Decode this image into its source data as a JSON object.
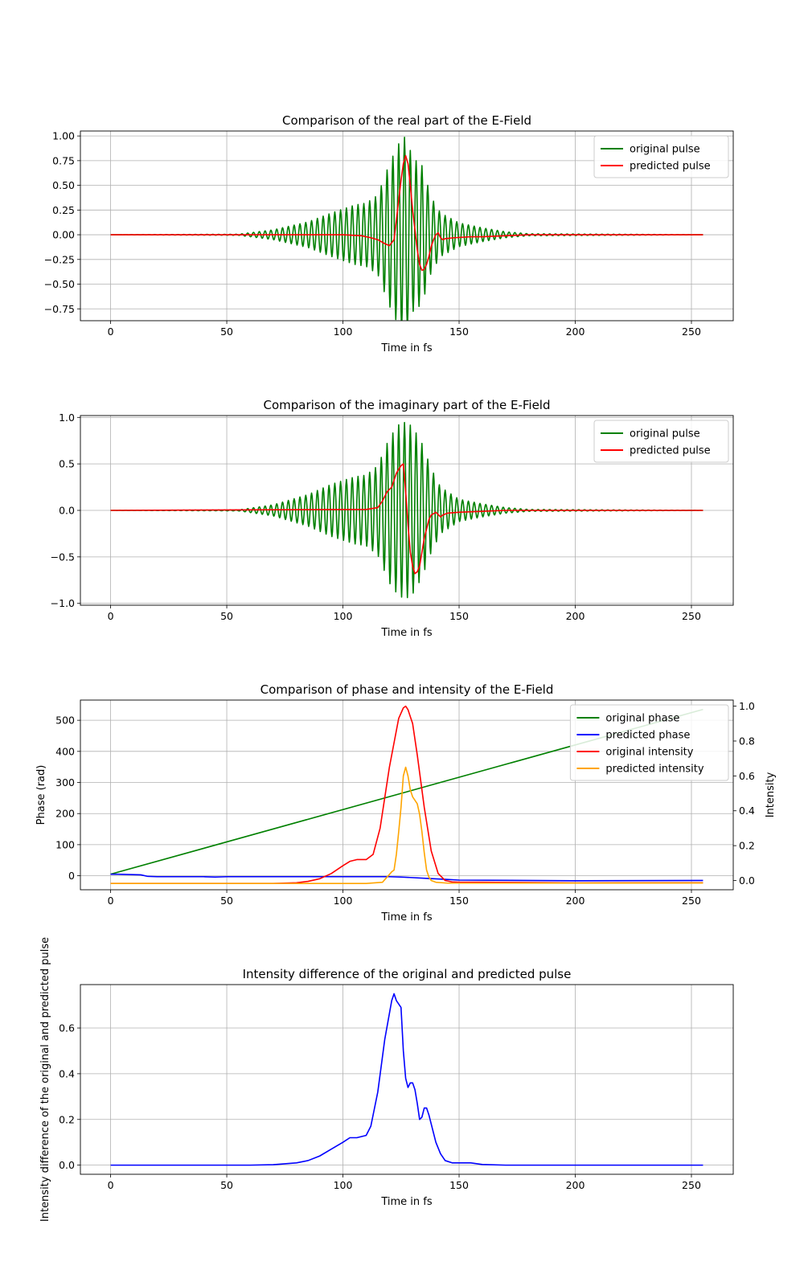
{
  "chart_data": [
    {
      "type": "line",
      "title": "Comparison of the real part of the E-Field",
      "xlabel": "Time in fs",
      "ylabel": "",
      "xlim": [
        -13,
        268
      ],
      "ylim": [
        -0.87,
        1.05
      ],
      "xticks": [
        0,
        50,
        100,
        150,
        200,
        250
      ],
      "yticks": [
        1.0,
        0.75,
        0.5,
        0.25,
        0.0,
        -0.25,
        -0.5,
        -0.75
      ],
      "ytick_labels": [
        "1.00",
        "0.75",
        "0.50",
        "0.25",
        "0.00",
        "−0.25",
        "−0.50",
        "−0.75"
      ],
      "grid": true,
      "legend": "top-right",
      "series": [
        {
          "name": "original pulse",
          "color": "#008000",
          "kind": "oscillation",
          "x_range": [
            0,
            255
          ],
          "carrier_period_fs": 2.5,
          "peak_time_fs": 126.5,
          "envelope": {
            "x": [
              0,
              55,
              70,
              85,
              95,
              105,
              110,
              115,
              120,
              124,
              127,
              130,
              134,
              138,
              142,
              150,
              160,
              170,
              180,
              255
            ],
            "y": [
              0,
              0.005,
              0.05,
              0.13,
              0.22,
              0.3,
              0.32,
              0.4,
              0.72,
              0.92,
              1.0,
              0.78,
              0.7,
              0.38,
              0.22,
              0.12,
              0.07,
              0.03,
              0.01,
              0
            ]
          }
        },
        {
          "name": "predicted pulse",
          "color": "#ff0000",
          "kind": "line",
          "x": [
            0,
            100,
            108,
            112,
            115,
            118,
            120,
            121,
            122,
            123,
            124,
            125,
            126,
            127,
            128,
            129,
            130,
            131,
            132,
            133,
            134,
            135,
            136,
            137,
            138,
            139,
            140,
            141,
            142,
            143,
            144,
            148,
            155,
            160,
            170,
            180,
            255
          ],
          "y": [
            0,
            0,
            -0.01,
            -0.03,
            -0.05,
            -0.09,
            -0.11,
            -0.08,
            -0.05,
            0.15,
            0.35,
            0.55,
            0.72,
            0.8,
            0.72,
            0.5,
            0.25,
            0.05,
            -0.15,
            -0.3,
            -0.36,
            -0.35,
            -0.3,
            -0.22,
            -0.12,
            -0.05,
            0.0,
            0.02,
            -0.03,
            -0.05,
            -0.04,
            -0.03,
            -0.02,
            -0.02,
            -0.01,
            0,
            0
          ]
        }
      ]
    },
    {
      "type": "line",
      "title": "Comparison of the imaginary part of the E-Field",
      "xlabel": "Time in fs",
      "ylabel": "",
      "xlim": [
        -13,
        268
      ],
      "ylim": [
        -1.02,
        1.02
      ],
      "xticks": [
        0,
        50,
        100,
        150,
        200,
        250
      ],
      "yticks": [
        1.0,
        0.5,
        0.0,
        -0.5,
        -1.0
      ],
      "ytick_labels": [
        "1.0",
        "0.5",
        "0.0",
        "−0.5",
        "−1.0"
      ],
      "grid": true,
      "legend": "top-right",
      "series": [
        {
          "name": "original pulse",
          "color": "#008000",
          "kind": "oscillation",
          "x_range": [
            0,
            255
          ],
          "carrier_period_fs": 2.5,
          "peak_time_fs": 126.5,
          "envelope": {
            "x": [
              0,
              55,
              70,
              85,
              95,
              105,
              110,
              115,
              120,
              124,
              127,
              130,
              134,
              138,
              142,
              150,
              160,
              170,
              180,
              255
            ],
            "y": [
              0,
              0.005,
              0.06,
              0.17,
              0.28,
              0.36,
              0.38,
              0.48,
              0.78,
              0.92,
              0.95,
              0.9,
              0.72,
              0.45,
              0.25,
              0.12,
              0.07,
              0.03,
              0.01,
              0
            ]
          }
        },
        {
          "name": "predicted pulse",
          "color": "#ff0000",
          "kind": "line",
          "x": [
            0,
            110,
            115,
            117,
            119,
            121,
            123,
            125,
            126,
            127,
            128,
            129,
            130,
            131,
            132,
            133,
            134,
            135,
            136,
            137,
            138,
            140,
            142,
            143,
            145,
            150,
            160,
            170,
            255
          ],
          "y": [
            0,
            0.01,
            0.03,
            0.1,
            0.2,
            0.25,
            0.4,
            0.48,
            0.5,
            0.2,
            -0.15,
            -0.45,
            -0.6,
            -0.68,
            -0.66,
            -0.6,
            -0.45,
            -0.3,
            -0.2,
            -0.1,
            -0.05,
            -0.02,
            -0.07,
            -0.05,
            -0.03,
            -0.02,
            -0.01,
            0,
            0
          ]
        }
      ]
    },
    {
      "type": "line",
      "title": "Comparison of phase and intensity of the E-Field",
      "xlabel": "Time in fs",
      "ylabel": "Phase (rad)",
      "y2label": "Intensity",
      "xlim": [
        -13,
        268
      ],
      "ylim": [
        -45,
        565
      ],
      "y2lim": [
        -0.053,
        1.035
      ],
      "xticks": [
        0,
        50,
        100,
        150,
        200,
        250
      ],
      "yticks": [
        500,
        400,
        300,
        200,
        100,
        0
      ],
      "ytick_labels": [
        "500",
        "400",
        "300",
        "200",
        "100",
        "0"
      ],
      "y2ticks": [
        1.0,
        0.8,
        0.6,
        0.4,
        0.2,
        0.0
      ],
      "y2tick_labels": [
        "1.0",
        "0.8",
        "0.6",
        "0.4",
        "0.2",
        "0.0"
      ],
      "grid": true,
      "legend": "top-right",
      "series": [
        {
          "name": "original phase",
          "color": "#008000",
          "axis": "left",
          "x": [
            0,
            255
          ],
          "y": [
            5,
            535
          ]
        },
        {
          "name": "predicted phase",
          "color": "#0000ff",
          "axis": "left",
          "x": [
            0,
            3,
            13,
            16,
            20,
            40,
            45,
            50,
            100,
            120,
            125,
            135,
            145,
            150,
            200,
            255
          ],
          "y": [
            5,
            5,
            3,
            -2,
            -3,
            -3,
            -4,
            -3,
            -3,
            -3,
            -4,
            -8,
            -12,
            -14,
            -16,
            -15
          ]
        },
        {
          "name": "original intensity",
          "color": "#ff0000",
          "axis": "right",
          "x": [
            0,
            70,
            80,
            85,
            90,
            95,
            100,
            103,
            106,
            110,
            113,
            116,
            120,
            124,
            126,
            127,
            128,
            130,
            132,
            135,
            138,
            141,
            144,
            147,
            150,
            160,
            200,
            255
          ],
          "y": [
            -0.017,
            -0.017,
            -0.013,
            -0.005,
            0.01,
            0.04,
            0.085,
            0.11,
            0.12,
            0.12,
            0.15,
            0.3,
            0.65,
            0.93,
            0.99,
            1.0,
            0.98,
            0.9,
            0.72,
            0.42,
            0.17,
            0.04,
            0.0,
            -0.008,
            -0.01,
            -0.01,
            -0.014,
            -0.013
          ]
        },
        {
          "name": "predicted intensity",
          "color": "#ffa500",
          "axis": "right",
          "x": [
            0,
            110,
            117,
            119,
            121,
            122,
            123,
            124,
            125,
            126,
            127,
            128,
            129,
            130,
            131,
            132,
            133,
            134,
            135,
            136,
            137,
            138,
            140,
            145,
            200,
            255
          ],
          "y": [
            -0.017,
            -0.017,
            -0.01,
            0.02,
            0.05,
            0.06,
            0.15,
            0.28,
            0.42,
            0.6,
            0.65,
            0.6,
            0.52,
            0.48,
            0.46,
            0.44,
            0.38,
            0.28,
            0.16,
            0.06,
            0.02,
            0.0,
            -0.01,
            -0.015,
            -0.015,
            -0.014
          ]
        }
      ]
    },
    {
      "type": "line",
      "title": "Intensity difference of the original and predicted pulse",
      "xlabel": "Time in fs",
      "ylabel": "Intensity difference of the original and predicted pulse",
      "xlim": [
        -13,
        268
      ],
      "ylim": [
        -0.04,
        0.79
      ],
      "xticks": [
        0,
        50,
        100,
        150,
        200,
        250
      ],
      "yticks": [
        0.6,
        0.4,
        0.2,
        0.0
      ],
      "ytick_labels": [
        "0.6",
        "0.4",
        "0.2",
        "0.0"
      ],
      "grid": true,
      "series": [
        {
          "name": "",
          "color": "#0000ff",
          "x": [
            0,
            60,
            70,
            80,
            85,
            90,
            95,
            100,
            103,
            106,
            110,
            112,
            115,
            118,
            121,
            122,
            123,
            125,
            126,
            127,
            128,
            129,
            130,
            131,
            132,
            133,
            134,
            135,
            136,
            137,
            138,
            139,
            140,
            142,
            144,
            147,
            150,
            155,
            160,
            170,
            255
          ],
          "y": [
            0,
            0,
            0.002,
            0.01,
            0.02,
            0.04,
            0.07,
            0.1,
            0.12,
            0.12,
            0.13,
            0.17,
            0.32,
            0.55,
            0.72,
            0.75,
            0.72,
            0.69,
            0.5,
            0.38,
            0.34,
            0.36,
            0.36,
            0.33,
            0.27,
            0.2,
            0.21,
            0.25,
            0.25,
            0.22,
            0.18,
            0.14,
            0.1,
            0.05,
            0.02,
            0.01,
            0.01,
            0.01,
            0.003,
            0,
            0
          ]
        }
      ]
    }
  ]
}
